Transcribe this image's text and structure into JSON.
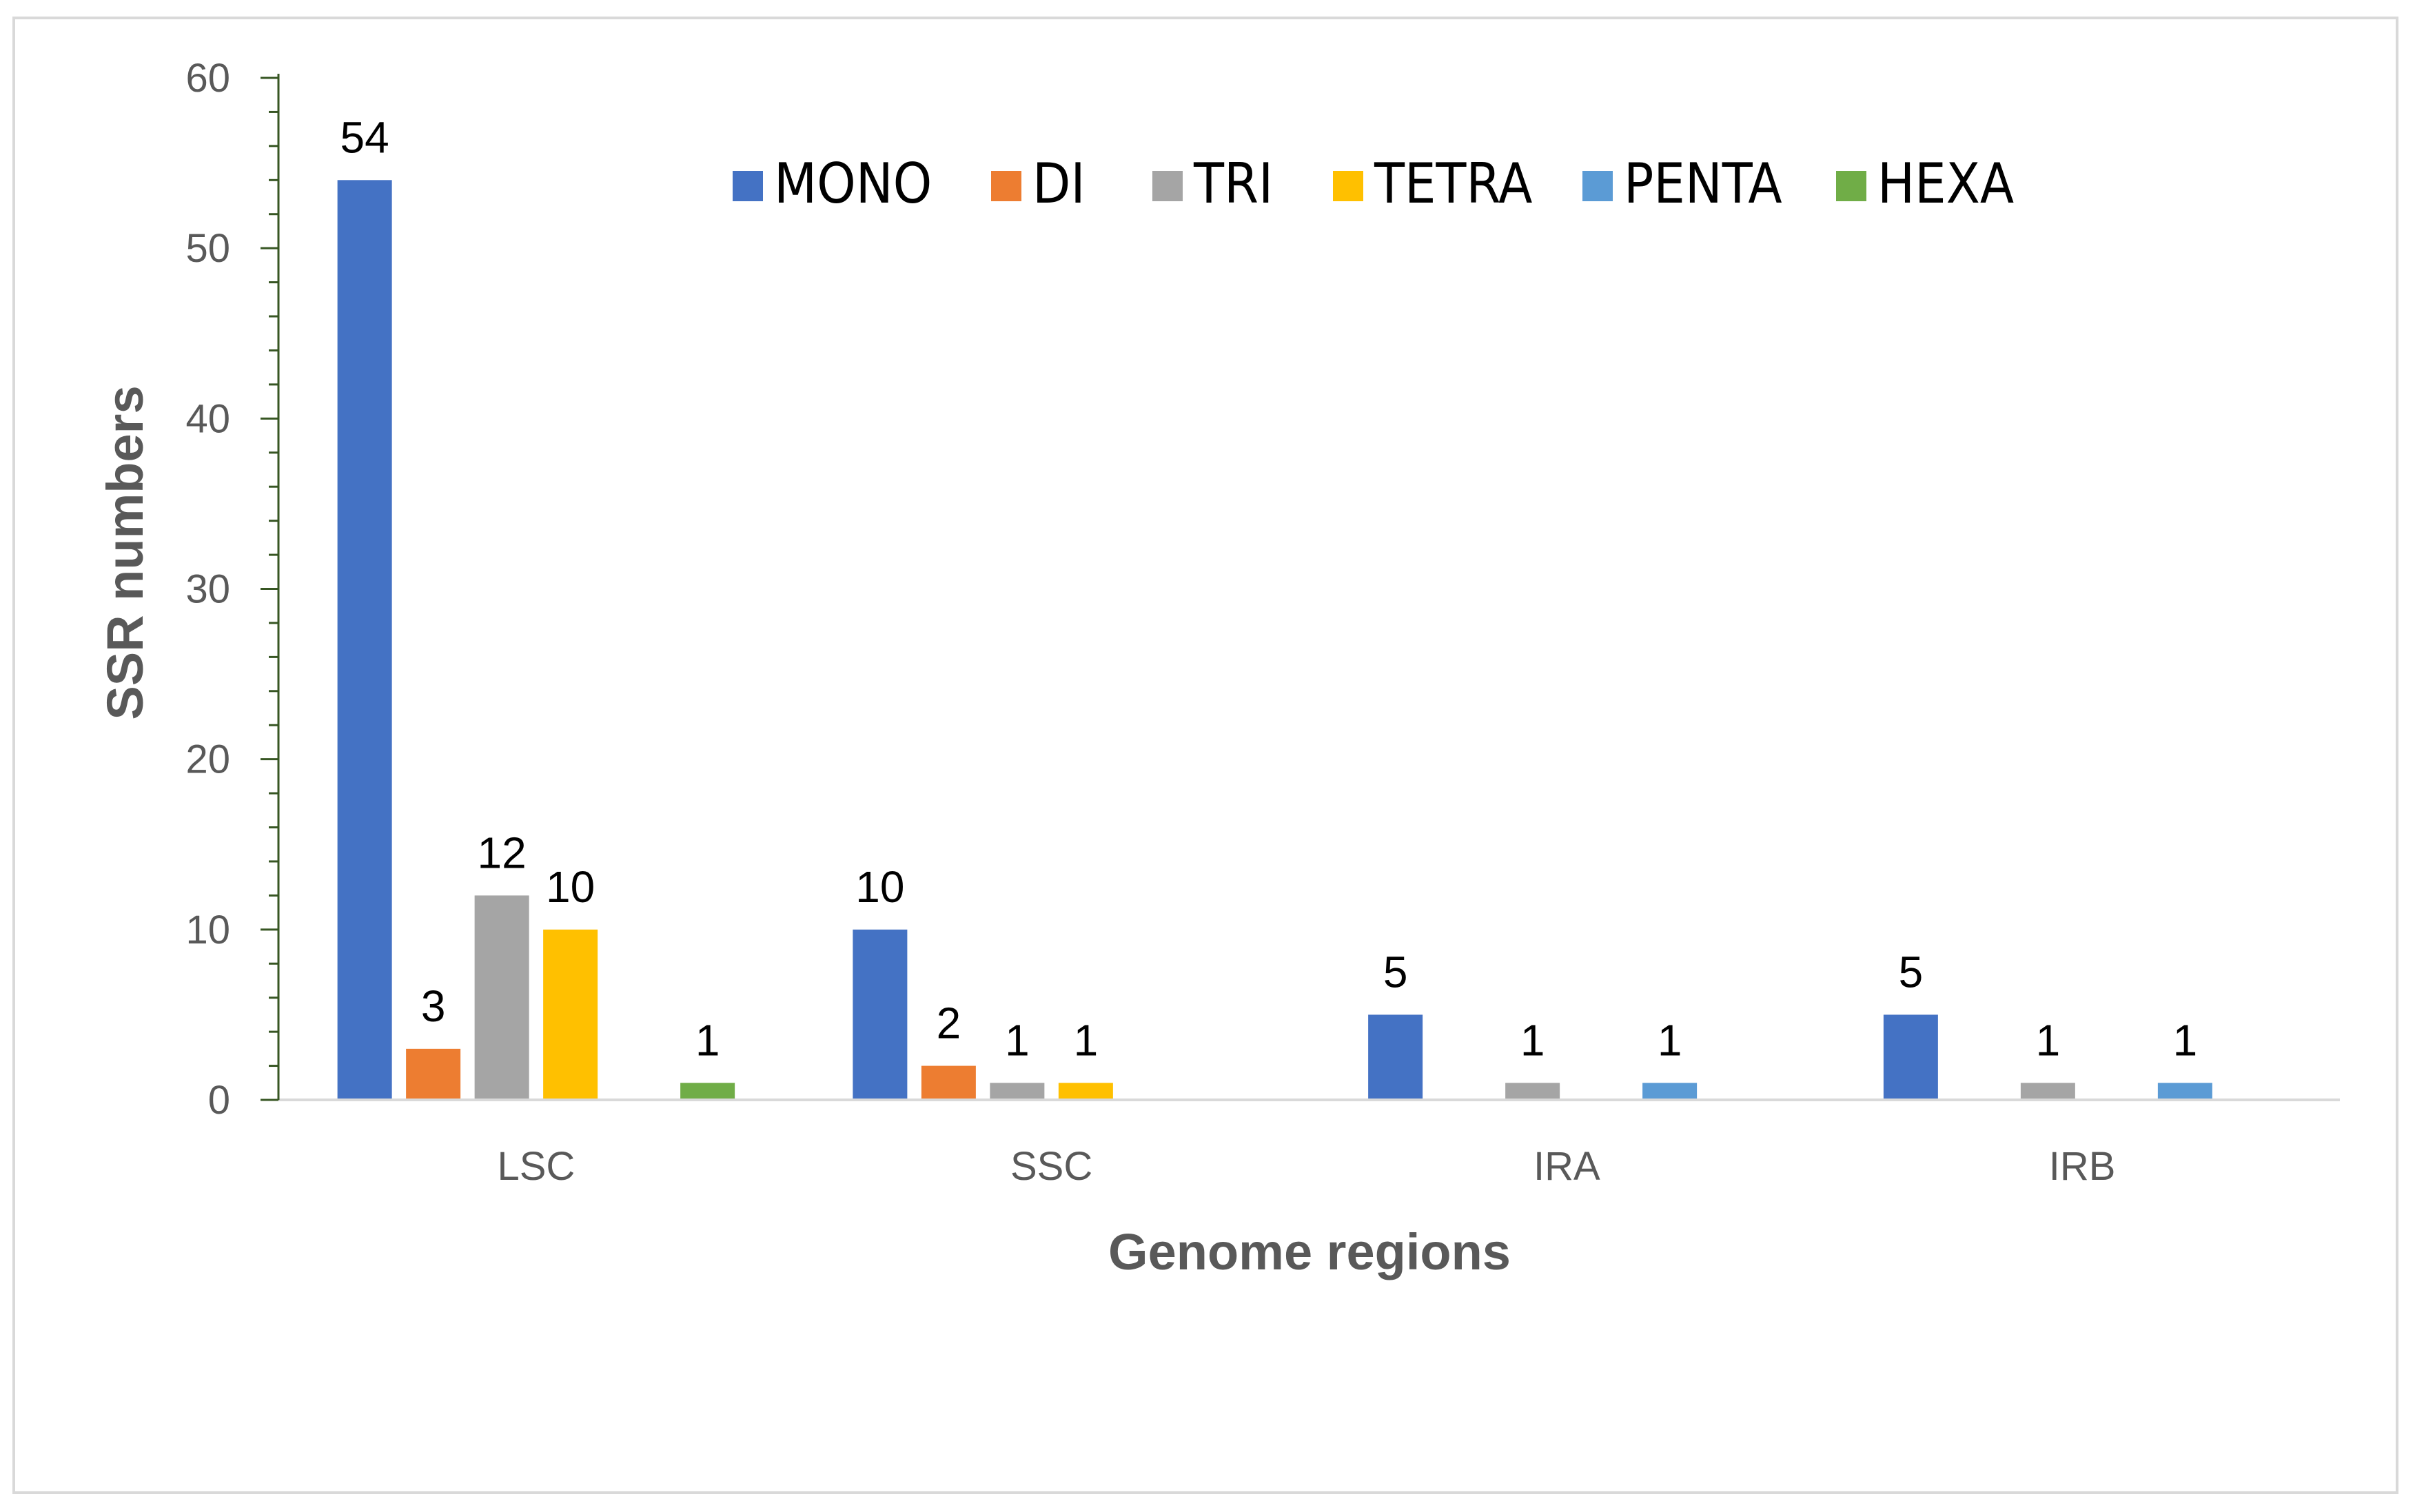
{
  "chart_data": {
    "type": "bar",
    "title": "",
    "xlabel": "Genome regions",
    "ylabel": "SSR numbers",
    "ylim": [
      0,
      60
    ],
    "yticks": [
      0,
      10,
      20,
      30,
      40,
      50,
      60
    ],
    "categories": [
      "LSC",
      "SSC",
      "IRA",
      "IRB"
    ],
    "legend_position": "top-right",
    "series": [
      {
        "name": "MONO",
        "color": "#4472c4",
        "values": [
          54,
          10,
          5,
          5
        ]
      },
      {
        "name": "DI",
        "color": "#ed7d31",
        "values": [
          3,
          2,
          0,
          0
        ]
      },
      {
        "name": "TRI",
        "color": "#a5a5a5",
        "values": [
          12,
          1,
          1,
          1
        ]
      },
      {
        "name": "TETRA",
        "color": "#ffc000",
        "values": [
          10,
          1,
          0,
          0
        ]
      },
      {
        "name": "PENTA",
        "color": "#5b9bd5",
        "values": [
          0,
          0,
          1,
          1
        ]
      },
      {
        "name": "HEXA",
        "color": "#70ad47",
        "values": [
          1,
          0,
          0,
          0
        ]
      }
    ]
  }
}
